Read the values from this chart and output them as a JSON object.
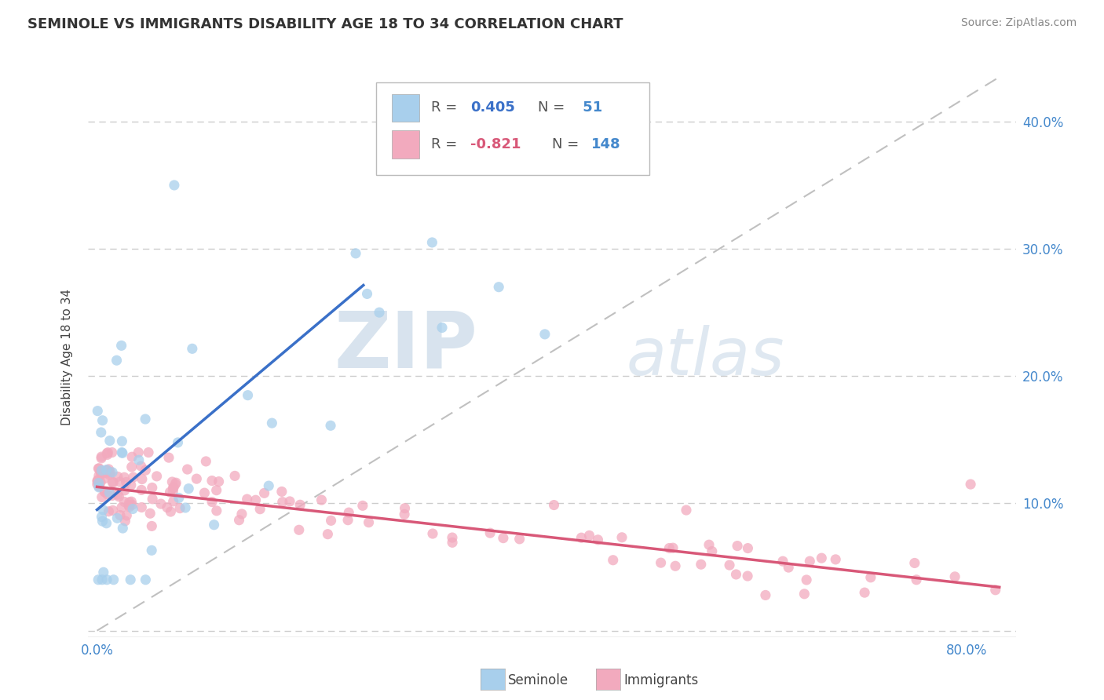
{
  "title": "SEMINOLE VS IMMIGRANTS DISABILITY AGE 18 TO 34 CORRELATION CHART",
  "source": "Source: ZipAtlas.com",
  "ylabel": "Disability Age 18 to 34",
  "R_seminole": 0.405,
  "N_seminole": 51,
  "R_immigrants": -0.821,
  "N_immigrants": 148,
  "xlim": [
    -0.008,
    0.845
  ],
  "ylim": [
    -0.005,
    0.435
  ],
  "xticks": [
    0.0,
    0.1,
    0.2,
    0.3,
    0.4,
    0.5,
    0.6,
    0.7,
    0.8
  ],
  "xticklabels": [
    "0.0%",
    "",
    "",
    "",
    "",
    "",
    "",
    "",
    "80.0%"
  ],
  "yticks": [
    0.0,
    0.1,
    0.2,
    0.3,
    0.4
  ],
  "yticklabels_left": [
    "",
    "",
    "",
    "",
    ""
  ],
  "yticklabels_right": [
    "",
    "10.0%",
    "20.0%",
    "30.0%",
    "40.0%"
  ],
  "color_seminole": "#A8CFEC",
  "color_immigrants": "#F2AABE",
  "line_color_seminole": "#3A70C8",
  "line_color_immigrants": "#D85878",
  "diag_line_color": "#C0C0C0",
  "watermark_zip": "ZIP",
  "watermark_atlas": "atlas",
  "background_color": "#FFFFFF",
  "grid_color": "#CCCCCC",
  "tick_color": "#4488CC",
  "legend_R_color_sem": "#3A70C8",
  "legend_R_color_imm": "#D85878",
  "legend_N_color": "#4488CC",
  "seminole_seed": 42,
  "immigrants_seed": 99
}
